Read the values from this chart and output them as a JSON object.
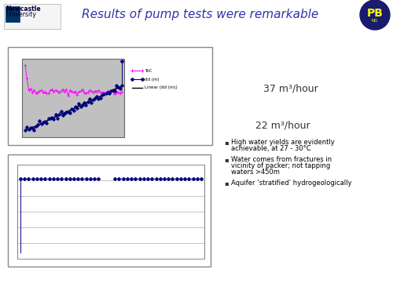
{
  "title": "Results of pump tests were remarkable",
  "title_color": "#3333aa",
  "title_fontsize": 11,
  "bg_color": "#ffffff",
  "top_box_label": "37 m³/hour",
  "bottom_box_label": "22 m³/hour",
  "legend_entries": [
    "ToC",
    "dd (m)",
    "Linear (dd (m))"
  ],
  "legend_colors": [
    "#ff00ff",
    "#000080",
    "#000000"
  ],
  "bullet_points": [
    "High water yields are evidently\nachievable, at 27 - 30°C",
    "Water comes from fractures in\nvicinity of packer; not tapping\nwaters >450m",
    "Aquifer ‘stratified’ hydrogeologically"
  ],
  "chart1_bg": "#c0c0c0",
  "chart2_bg": "#ffffff"
}
